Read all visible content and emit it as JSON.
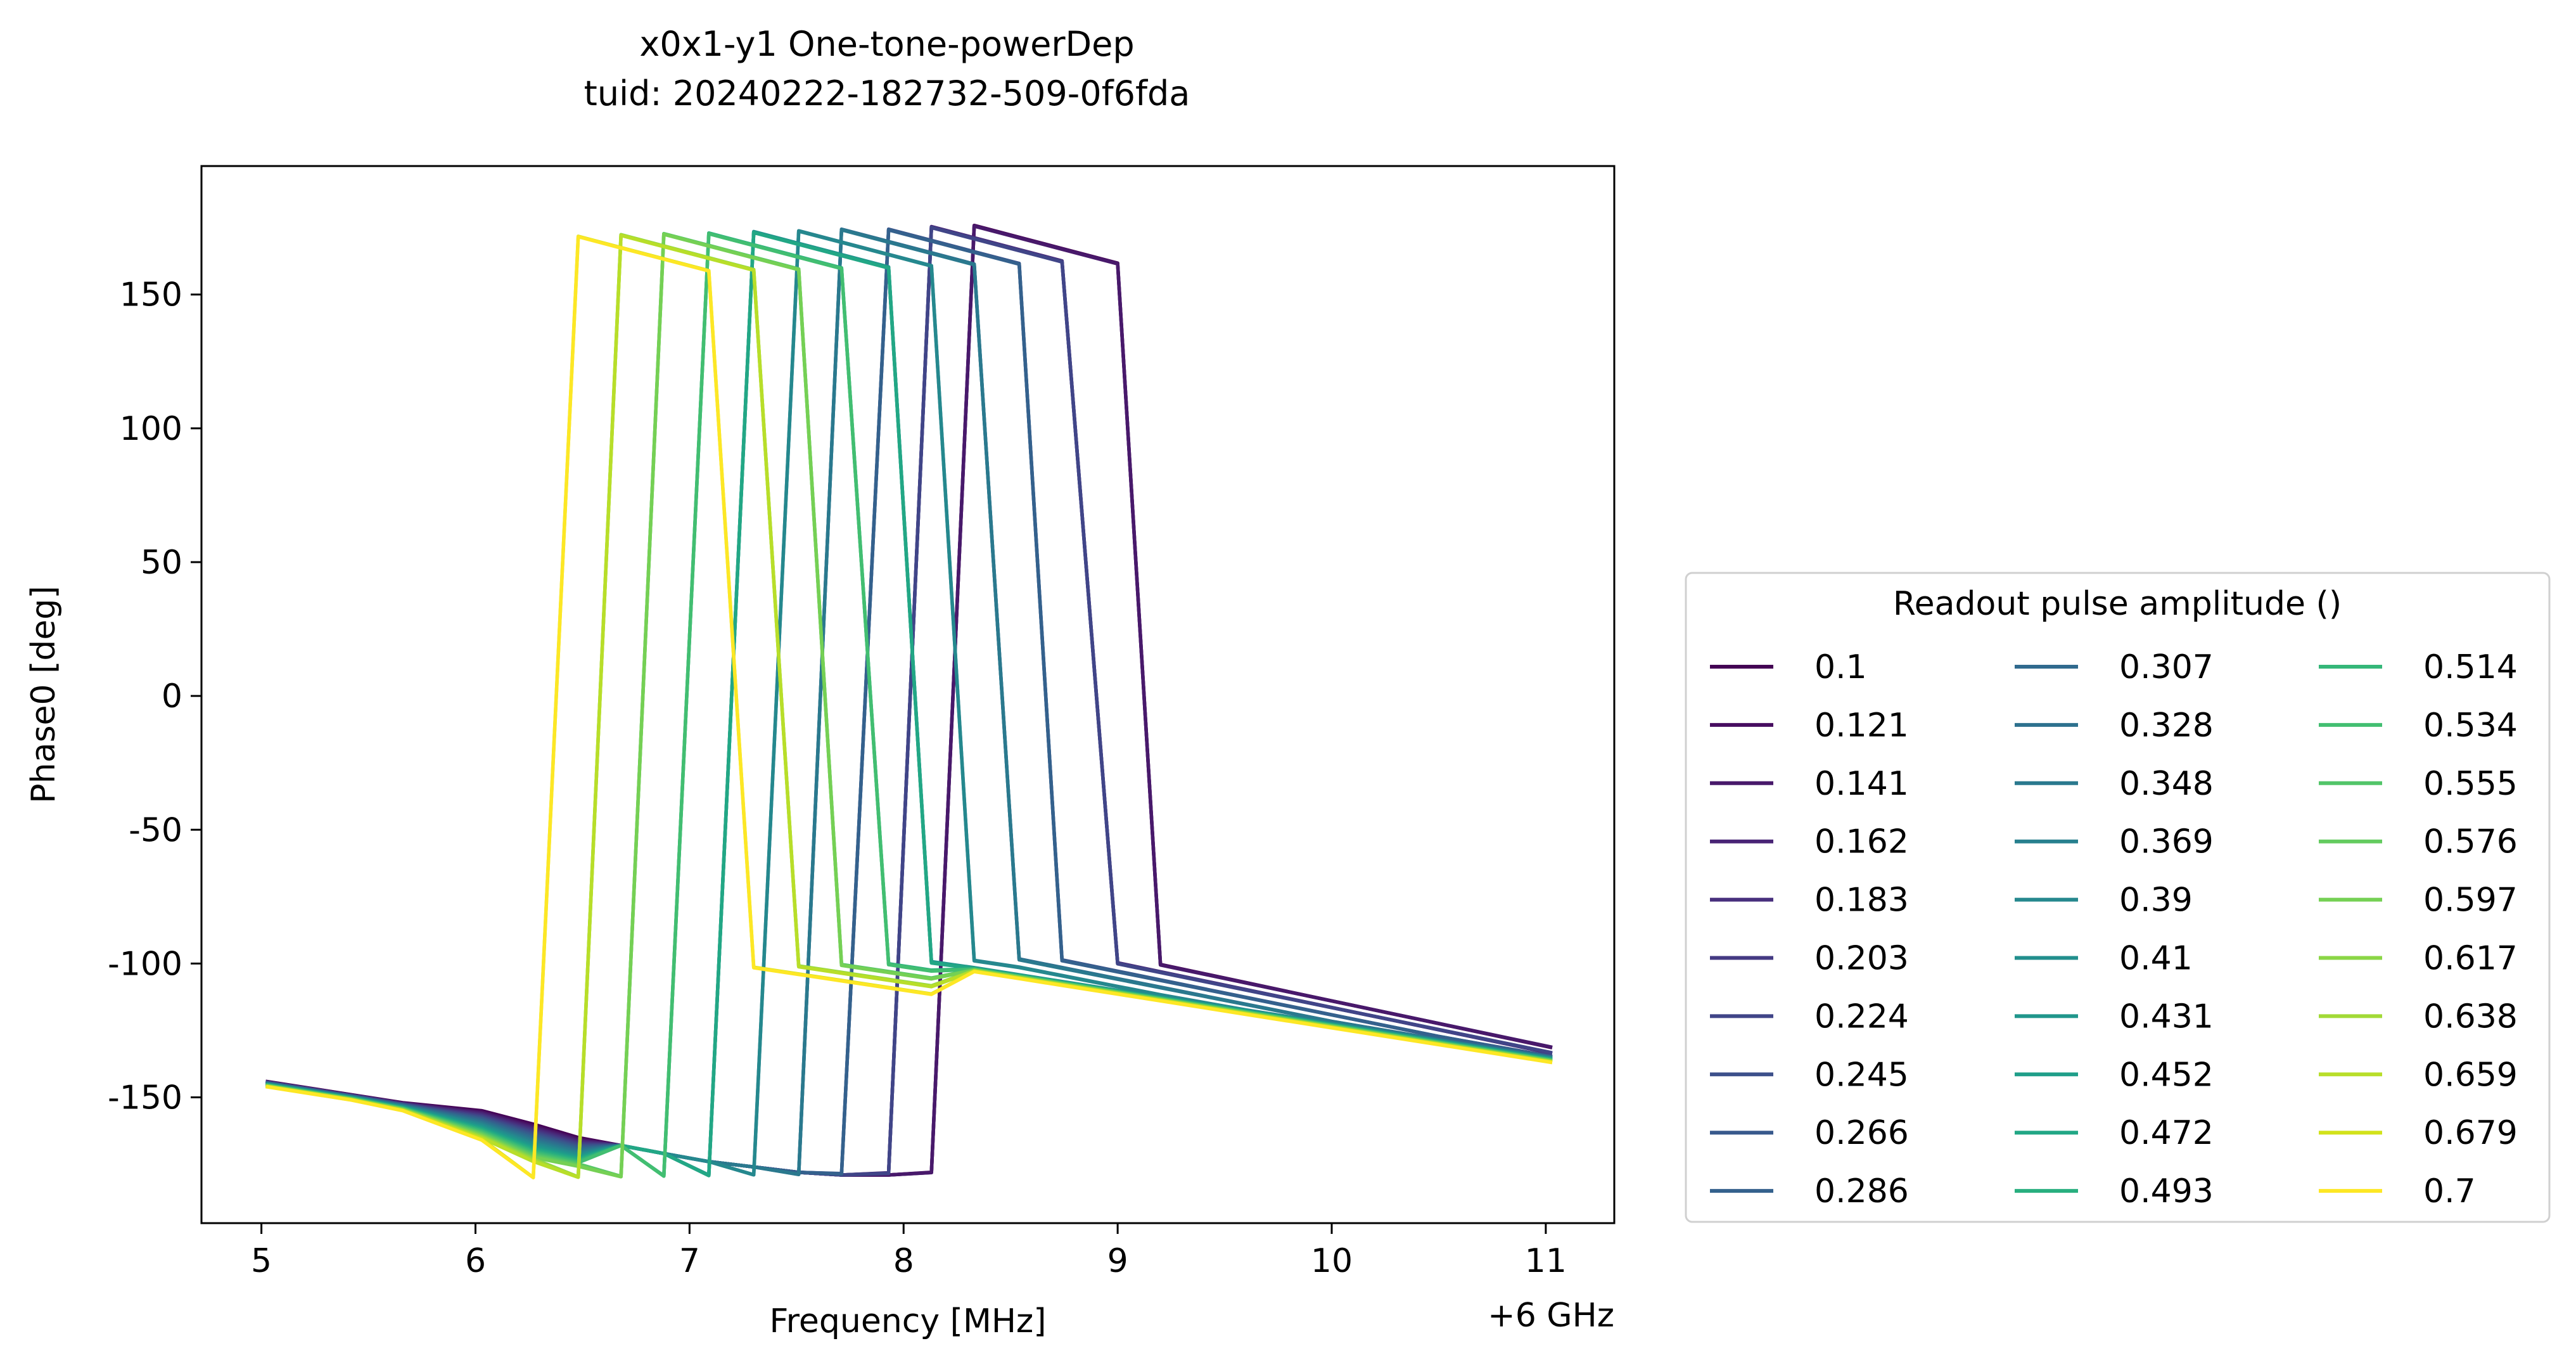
{
  "chart_data": {
    "type": "line",
    "title": "x0x1-y1 One-tone-powerDep",
    "subtitle": "tuid: 20240222-182732-509-0f6fda",
    "xlabel": "Frequency [MHz]",
    "x_offset_label": "+6 GHz",
    "ylabel": "Phase0 [deg]",
    "xlim": [
      4.72,
      11.32
    ],
    "ylim": [
      -197,
      198
    ],
    "xticks": [
      5,
      6,
      7,
      8,
      9,
      10,
      11
    ],
    "yticks": [
      150,
      100,
      50,
      0,
      -50,
      -100,
      -150
    ],
    "xtick_labels": [
      "5",
      "6",
      "7",
      "8",
      "9",
      "10",
      "11"
    ],
    "ytick_labels": [
      "150",
      "100",
      "50",
      "0",
      "-50",
      "-100",
      "-150"
    ],
    "grid": false,
    "colormap": "viridis",
    "x": [
      5.02,
      5.42,
      5.66,
      6.03,
      6.27,
      6.48,
      6.68,
      6.88,
      7.09,
      7.3,
      7.51,
      7.71,
      7.93,
      8.13,
      8.33,
      8.54,
      8.74,
      9.0,
      9.2,
      9.6,
      10.0,
      10.5,
      11.03
    ],
    "legend": {
      "title": "Readout pulse amplitude ()",
      "placement": "outside-right, lower",
      "columns": 3
    },
    "series": [
      {
        "name": "0.1",
        "color": "#440154"
      },
      {
        "name": "0.121",
        "color": "#470d60"
      },
      {
        "name": "0.141",
        "color": "#48196b"
      },
      {
        "name": "0.162",
        "color": "#482475"
      },
      {
        "name": "0.183",
        "color": "#472f7d"
      },
      {
        "name": "0.203",
        "color": "#443a83"
      },
      {
        "name": "0.224",
        "color": "#404588"
      },
      {
        "name": "0.245",
        "color": "#3c4f8a"
      },
      {
        "name": "0.266",
        "color": "#38598c"
      },
      {
        "name": "0.286",
        "color": "#34618d"
      },
      {
        "name": "0.307",
        "color": "#306a8e"
      },
      {
        "name": "0.328",
        "color": "#2d718e"
      },
      {
        "name": "0.348",
        "color": "#2a798e"
      },
      {
        "name": "0.369",
        "color": "#27808e"
      },
      {
        "name": "0.39",
        "color": "#25888e"
      },
      {
        "name": "0.41",
        "color": "#228f8d"
      },
      {
        "name": "0.431",
        "color": "#20968c"
      },
      {
        "name": "0.452",
        "color": "#1f9e89"
      },
      {
        "name": "0.472",
        "color": "#22a785"
      },
      {
        "name": "0.493",
        "color": "#29af7f"
      },
      {
        "name": "0.514",
        "color": "#35b779"
      },
      {
        "name": "0.534",
        "color": "#42be71"
      },
      {
        "name": "0.555",
        "color": "#52c569"
      },
      {
        "name": "0.576",
        "color": "#63cb5f"
      },
      {
        "name": "0.597",
        "color": "#75d054"
      },
      {
        "name": "0.617",
        "color": "#8bd646"
      },
      {
        "name": "0.638",
        "color": "#a2da37"
      },
      {
        "name": "0.659",
        "color": "#b8de29"
      },
      {
        "name": "0.679",
        "color": "#d2e21b"
      },
      {
        "name": "0.7",
        "color": "#fde725"
      }
    ]
  }
}
